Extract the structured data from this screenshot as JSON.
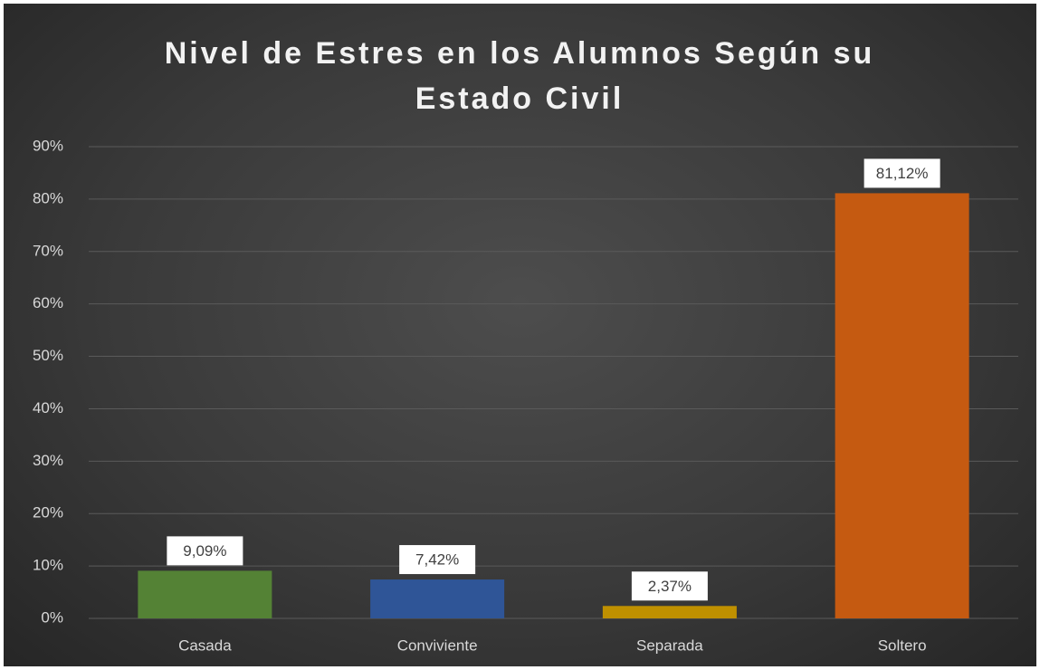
{
  "chart_data": {
    "type": "bar",
    "title": "Nivel de Estres en los Alumnos Según su Estado Civil",
    "categories": [
      "Casada",
      "Conviviente",
      "Separada",
      "Soltero"
    ],
    "series": [
      {
        "name": null,
        "values": [
          9.09,
          7.42,
          2.37,
          81.12
        ],
        "value_labels": [
          "9,09%",
          "7,42%",
          "2,37%",
          "81,12%"
        ],
        "colors": [
          "#548235",
          "#2f5597",
          "#bf9000",
          "#c55a11"
        ]
      }
    ],
    "ylim": [
      0,
      90
    ],
    "yticks": [
      {
        "value": 0,
        "label": "0%"
      },
      {
        "value": 10,
        "label": "10%"
      },
      {
        "value": 20,
        "label": "20%"
      },
      {
        "value": 30,
        "label": "30%"
      },
      {
        "value": 40,
        "label": "40%"
      },
      {
        "value": 50,
        "label": "50%"
      },
      {
        "value": 60,
        "label": "60%"
      },
      {
        "value": 70,
        "label": "70%"
      },
      {
        "value": 80,
        "label": "80%"
      },
      {
        "value": 90,
        "label": "90%"
      }
    ],
    "grid": true
  }
}
